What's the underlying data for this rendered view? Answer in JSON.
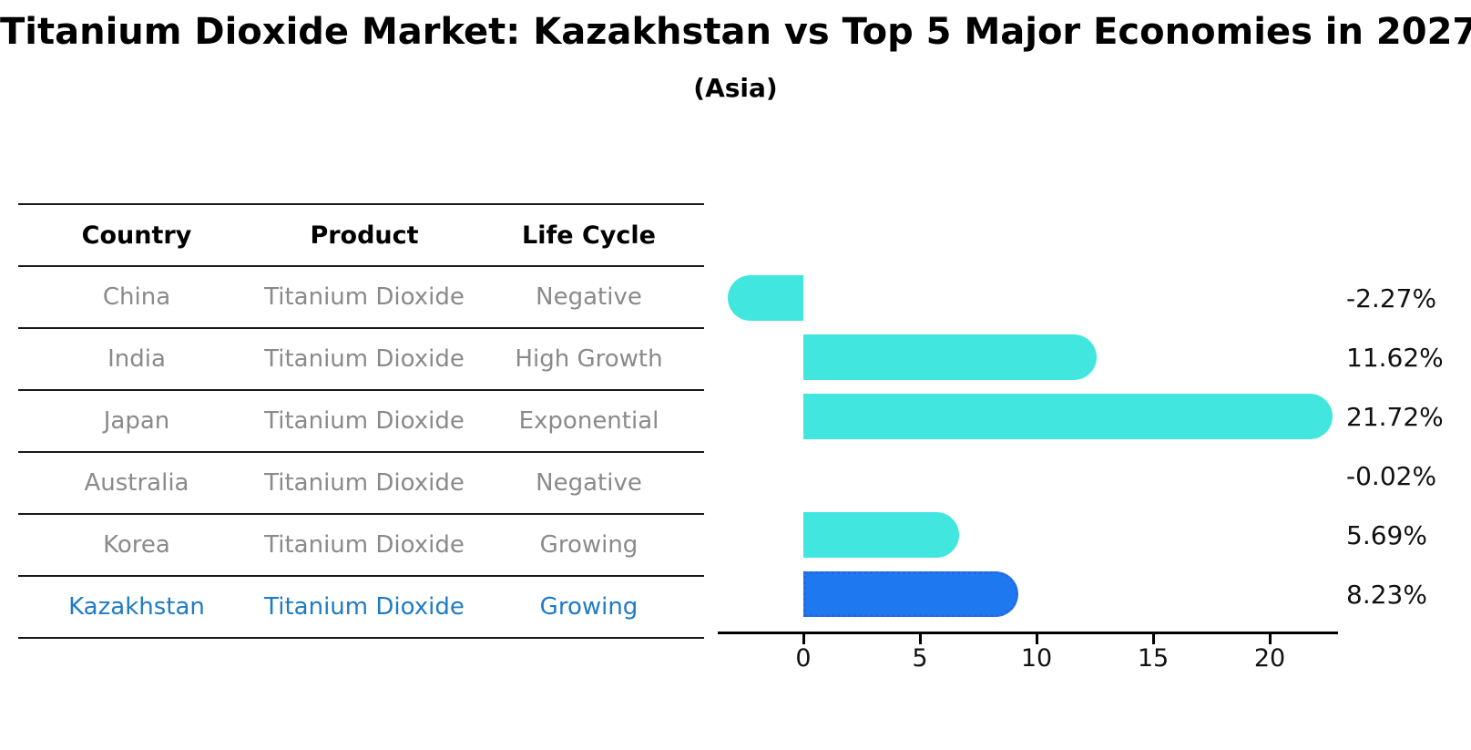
{
  "title": "Titanium Dioxide Market: Kazakhstan vs Top 5 Major Economies in 2027",
  "subtitle": "(Asia)",
  "table": {
    "headers": [
      "Country",
      "Product",
      "Life Cycle"
    ],
    "rows": [
      {
        "country": "China",
        "product": "Titanium Dioxide",
        "life_cycle": "Negative",
        "highlight": false
      },
      {
        "country": "India",
        "product": "Titanium Dioxide",
        "life_cycle": "High Growth",
        "highlight": false
      },
      {
        "country": "Japan",
        "product": "Titanium Dioxide",
        "life_cycle": "Exponential",
        "highlight": false
      },
      {
        "country": "Australia",
        "product": "Titanium Dioxide",
        "life_cycle": "Negative",
        "highlight": false
      },
      {
        "country": "Korea",
        "product": "Titanium Dioxide",
        "life_cycle": "Growing",
        "highlight": false
      },
      {
        "country": "Kazakhstan",
        "product": "Titanium Dioxide",
        "life_cycle": "Growing",
        "highlight": true
      }
    ]
  },
  "chart_data": {
    "type": "bar",
    "orientation": "horizontal",
    "title": "Titanium Dioxide Market: Kazakhstan vs Top 5 Major Economies in 2027 (Asia)",
    "categories": [
      "China",
      "India",
      "Japan",
      "Australia",
      "Korea",
      "Kazakhstan"
    ],
    "values": [
      -2.27,
      11.62,
      21.72,
      -0.02,
      5.69,
      8.23
    ],
    "value_labels": [
      "-2.27%",
      "11.62%",
      "21.72%",
      "-0.02%",
      "5.69%",
      "8.23%"
    ],
    "x_ticks": [
      "0",
      "5",
      "10",
      "15",
      "20"
    ],
    "x_tick_values": [
      0,
      5,
      10,
      15,
      20
    ],
    "xlim": [
      -3.7,
      23.0
    ],
    "highlight_index": 5,
    "grid": false,
    "legend": false
  },
  "colors": {
    "bar_default": "#41e6df",
    "bar_highlight": "#1e78f0",
    "bar_highlight_border": "#2e66d8",
    "highlight_text": "#1e7bc4",
    "row_text": "#8a8a8a",
    "header_text": "#000000",
    "axis": "#000000",
    "value_text": "#111111"
  }
}
